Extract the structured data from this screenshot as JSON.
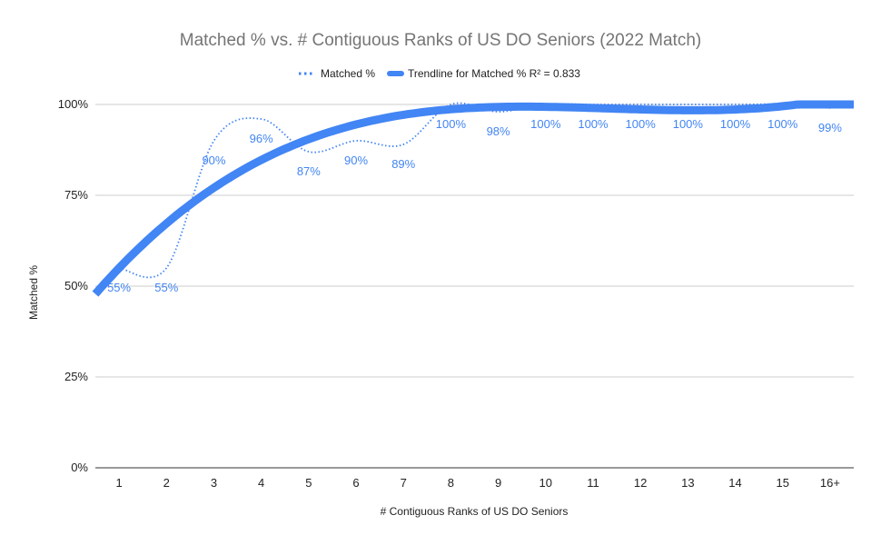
{
  "chart_data": {
    "type": "line",
    "title": "Matched % vs. # Contiguous Ranks of US DO Seniors (2022 Match)",
    "xlabel": "# Contiguous Ranks of US DO Seniors",
    "ylabel": "Matched %",
    "categories": [
      "1",
      "2",
      "3",
      "4",
      "5",
      "6",
      "7",
      "8",
      "9",
      "10",
      "11",
      "12",
      "13",
      "14",
      "15",
      "16+"
    ],
    "series": [
      {
        "name": "Matched %",
        "style": "dotted",
        "values": [
          55,
          55,
          90,
          96,
          87,
          90,
          89,
          100,
          98,
          100,
          100,
          100,
          100,
          100,
          100,
          99
        ],
        "labels": [
          "55%",
          "55%",
          "90%",
          "96%",
          "87%",
          "90%",
          "89%",
          "100%",
          "98%",
          "100%",
          "100%",
          "100%",
          "100%",
          "100%",
          "100%",
          "99%"
        ]
      },
      {
        "name": "Trendline for Matched % R² = 0.833",
        "style": "thick"
      }
    ],
    "ylim": [
      0,
      100
    ],
    "yticks": [
      "0%",
      "25%",
      "50%",
      "75%",
      "100%"
    ],
    "ytick_values": [
      0,
      25,
      50,
      75,
      100
    ],
    "grid": true,
    "legend_position": "top",
    "colors": {
      "series": "#4285f4",
      "grid": "#cccccc",
      "axis": "#333333",
      "title": "#757575"
    }
  }
}
